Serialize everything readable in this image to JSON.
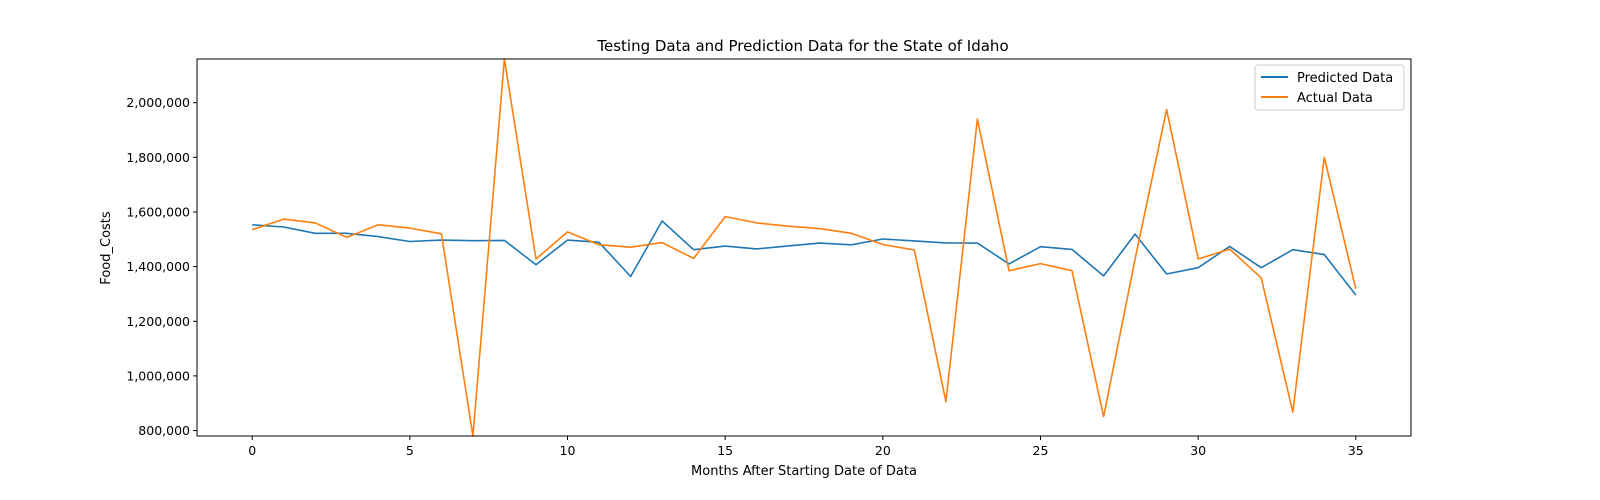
{
  "chart_data": {
    "type": "line",
    "title": "Testing Data and Prediction Data for the State of Idaho",
    "xlabel": "Months After Starting Date of Data",
    "ylabel": "Food_Costs",
    "xlim": [
      -1.75,
      36.75
    ],
    "ylim": [
      780000,
      2160000
    ],
    "x_ticks": [
      0,
      5,
      10,
      15,
      20,
      25,
      30,
      35
    ],
    "y_ticks": [
      800000,
      1000000,
      1200000,
      1400000,
      1600000,
      1800000,
      2000000
    ],
    "y_tick_labels": [
      "800,000",
      "1,000,000",
      "1,200,000",
      "1,400,000",
      "1,600,000",
      "1,800,000",
      "2,000,000"
    ],
    "x": [
      0,
      1,
      2,
      3,
      4,
      5,
      6,
      7,
      8,
      9,
      10,
      11,
      12,
      13,
      14,
      15,
      16,
      17,
      18,
      19,
      20,
      21,
      22,
      23,
      24,
      25,
      26,
      27,
      28,
      29,
      30,
      31,
      32,
      33,
      34,
      35
    ],
    "series": [
      {
        "name": "Predicted Data",
        "color": "#1f77b4",
        "values": [
          1553000,
          1545000,
          1522000,
          1522000,
          1510000,
          1492000,
          1497000,
          1495000,
          1496000,
          1407000,
          1497000,
          1489000,
          1364000,
          1567000,
          1462000,
          1475000,
          1465000,
          1476000,
          1486000,
          1480000,
          1501000,
          1494000,
          1487000,
          1486000,
          1410000,
          1473000,
          1463000,
          1366000,
          1519000,
          1373000,
          1396000,
          1474000,
          1396000,
          1462000,
          1444000,
          1296000
        ]
      },
      {
        "name": "Actual Data",
        "color": "#ff7f0e",
        "values": [
          1535000,
          1574000,
          1560000,
          1507000,
          1553000,
          1541000,
          1520000,
          780000,
          2160000,
          1428000,
          1527000,
          1480000,
          1471000,
          1488000,
          1430000,
          1583000,
          1560000,
          1548000,
          1539000,
          1522000,
          1481000,
          1461000,
          906000,
          1940000,
          1385000,
          1411000,
          1385000,
          851000,
          1428000,
          1975000,
          1428000,
          1464000,
          1359000,
          868000,
          1800000,
          1319000
        ]
      }
    ],
    "legend_position": "upper right",
    "grid": false
  }
}
